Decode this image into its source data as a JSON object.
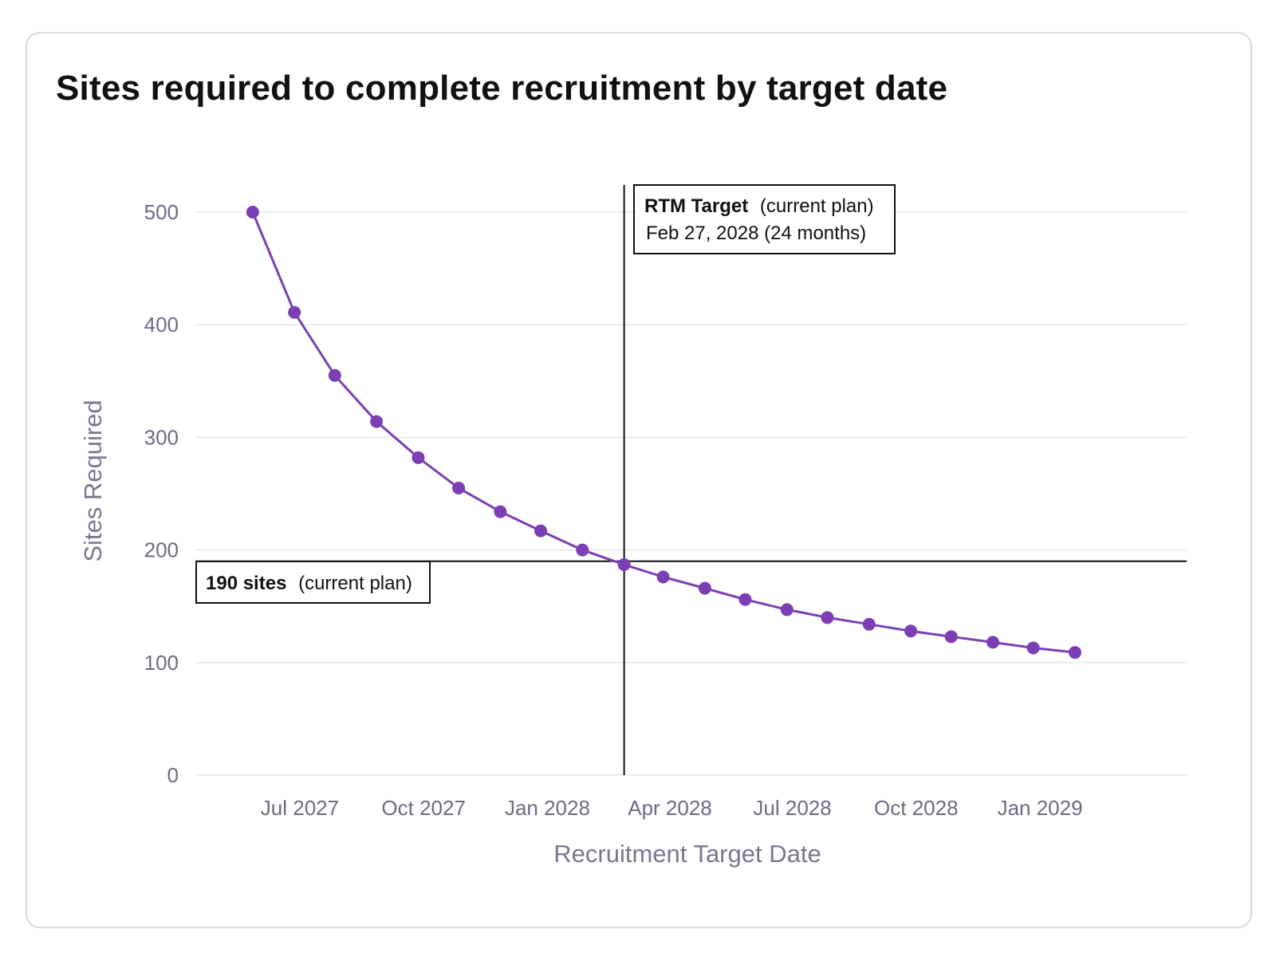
{
  "chart_data": {
    "type": "line",
    "title": "Sites required to complete recruitment by target date",
    "xlabel": "Recruitment Target Date",
    "ylabel": "Sites Required",
    "xlim": [
      "2027-04-15",
      "2029-04-20"
    ],
    "ylim": [
      0,
      500
    ],
    "x_ticks": [
      {
        "date": "2027-07-01",
        "label": "Jul 2027"
      },
      {
        "date": "2027-10-01",
        "label": "Oct 2027"
      },
      {
        "date": "2028-01-01",
        "label": "Jan 2028"
      },
      {
        "date": "2028-04-01",
        "label": "Apr 2028"
      },
      {
        "date": "2028-07-01",
        "label": "Jul 2028"
      },
      {
        "date": "2028-10-01",
        "label": "Oct 2028"
      },
      {
        "date": "2029-01-01",
        "label": "Jan 2029"
      }
    ],
    "y_ticks": [
      0,
      100,
      200,
      300,
      400,
      500
    ],
    "grid": "horizontal",
    "legend": "none",
    "series": [
      {
        "color": "#7b3fb3",
        "points": [
          {
            "x": "2027-05-27",
            "y": 500
          },
          {
            "x": "2027-06-27",
            "y": 411
          },
          {
            "x": "2027-07-27",
            "y": 355
          },
          {
            "x": "2027-08-27",
            "y": 314
          },
          {
            "x": "2027-09-27",
            "y": 282
          },
          {
            "x": "2027-10-27",
            "y": 255
          },
          {
            "x": "2027-11-27",
            "y": 234
          },
          {
            "x": "2027-12-27",
            "y": 217
          },
          {
            "x": "2028-01-27",
            "y": 200
          },
          {
            "x": "2028-02-27",
            "y": 187
          },
          {
            "x": "2028-03-27",
            "y": 176
          },
          {
            "x": "2028-04-27",
            "y": 166
          },
          {
            "x": "2028-05-27",
            "y": 156
          },
          {
            "x": "2028-06-27",
            "y": 147
          },
          {
            "x": "2028-07-27",
            "y": 140
          },
          {
            "x": "2028-08-27",
            "y": 134
          },
          {
            "x": "2028-09-27",
            "y": 128
          },
          {
            "x": "2028-10-27",
            "y": 123
          },
          {
            "x": "2028-11-27",
            "y": 118
          },
          {
            "x": "2028-12-27",
            "y": 113
          },
          {
            "x": "2029-01-27",
            "y": 109
          }
        ]
      }
    ],
    "annotations": {
      "vertical": {
        "x": "2028-02-27",
        "bold": "RTM Target",
        "suffix": "(current plan)",
        "line2": "Feb 27, 2028 (24 months)"
      },
      "horizontal": {
        "y": 190,
        "bold": "190 sites",
        "suffix": "(current plan)"
      }
    }
  }
}
